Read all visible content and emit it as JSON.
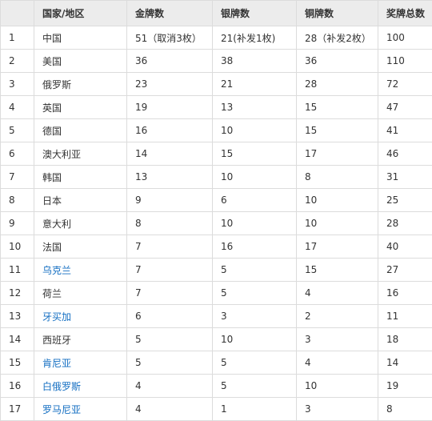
{
  "table": {
    "header": [
      "",
      "国家/地区",
      "金牌数",
      "银牌数",
      "铜牌数",
      "奖牌总数"
    ],
    "rows": [
      [
        "1",
        {
          "text": "中国",
          "link": false
        },
        "51（取消3枚）",
        "21(补发1枚)",
        "28（补发2枚）",
        "100"
      ],
      [
        "2",
        {
          "text": "美国",
          "link": false
        },
        "36",
        "38",
        "36",
        "110"
      ],
      [
        "3",
        {
          "text": "俄罗斯",
          "link": false
        },
        "23",
        "21",
        "28",
        "72"
      ],
      [
        "4",
        {
          "text": "英国",
          "link": false
        },
        "19",
        "13",
        "15",
        "47"
      ],
      [
        "5",
        {
          "text": "德国",
          "link": false
        },
        "16",
        "10",
        "15",
        "41"
      ],
      [
        "6",
        {
          "text": "澳大利亚",
          "link": false
        },
        "14",
        "15",
        "17",
        "46"
      ],
      [
        "7",
        {
          "text": "韩国",
          "link": false
        },
        "13",
        "10",
        "8",
        "31"
      ],
      [
        "8",
        {
          "text": "日本",
          "link": false
        },
        "9",
        "6",
        "10",
        "25"
      ],
      [
        "9",
        {
          "text": "意大利",
          "link": false
        },
        "8",
        "10",
        "10",
        "28"
      ],
      [
        "10",
        {
          "text": "法国",
          "link": false
        },
        "7",
        "16",
        "17",
        "40"
      ],
      [
        "11",
        {
          "text": "乌克兰",
          "link": true
        },
        "7",
        "5",
        "15",
        "27"
      ],
      [
        "12",
        {
          "text": "荷兰",
          "link": false
        },
        "7",
        "5",
        "4",
        "16"
      ],
      [
        "13",
        {
          "text": "牙买加",
          "link": true
        },
        "6",
        "3",
        "2",
        "11"
      ],
      [
        "14",
        {
          "text": "西班牙",
          "link": false
        },
        "5",
        "10",
        "3",
        "18"
      ],
      [
        "15",
        {
          "text": "肯尼亚",
          "link": true
        },
        "5",
        "5",
        "4",
        "14"
      ],
      [
        "16",
        {
          "text": "白俄罗斯",
          "link": true
        },
        "4",
        "5",
        "10",
        "19"
      ],
      [
        "17",
        {
          "text": "罗马尼亚",
          "link": true
        },
        "4",
        "1",
        "3",
        "8"
      ]
    ]
  }
}
